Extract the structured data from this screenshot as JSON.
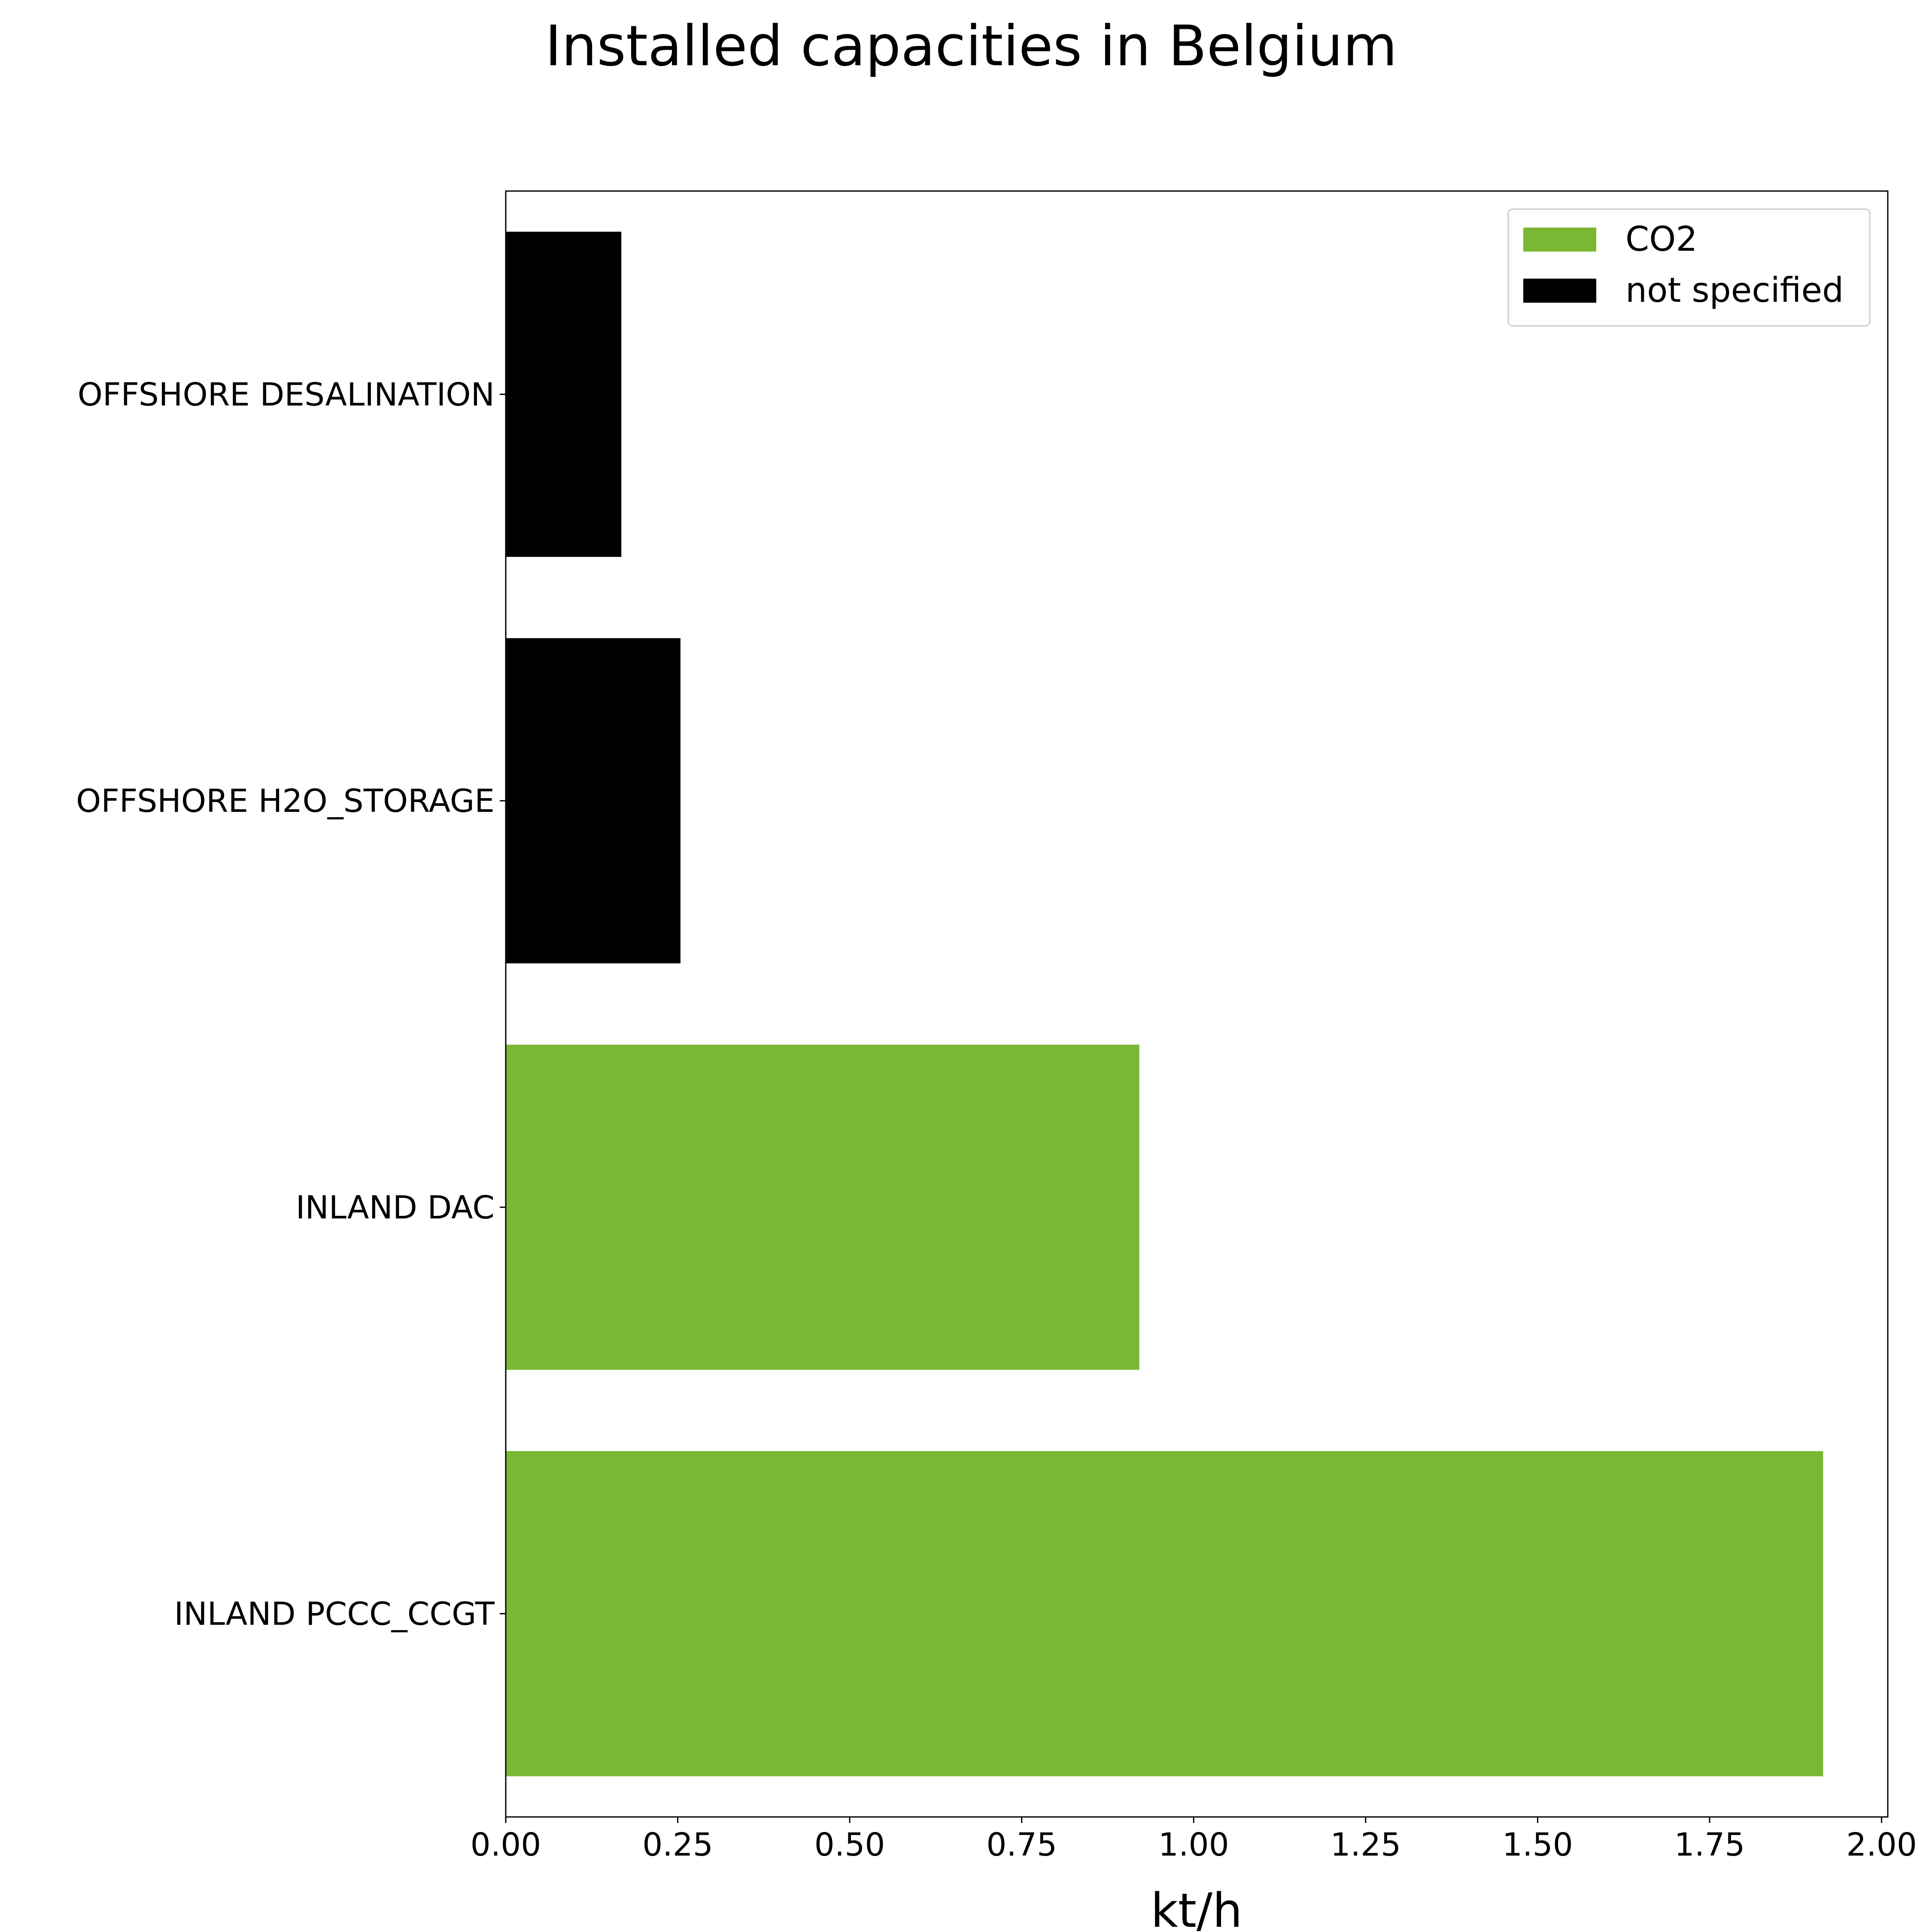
{
  "chart_data": {
    "type": "bar",
    "orientation": "horizontal",
    "title": "Installed capacities in Belgium",
    "xlabel": "kt/h",
    "ylabel": "",
    "xlim": [
      0,
      2.009
    ],
    "x_ticks": [
      0.0,
      0.25,
      0.5,
      0.75,
      1.0,
      1.25,
      1.5,
      1.75,
      2.0
    ],
    "x_tick_labels": [
      "0.00",
      "0.25",
      "0.50",
      "0.75",
      "1.00",
      "1.25",
      "1.50",
      "1.75",
      "2.00"
    ],
    "categories": [
      "OFFSHORE DESALINATION",
      "OFFSHORE H2O_STORAGE",
      "INLAND DAC",
      "INLAND PCCC_CCGT"
    ],
    "values": [
      0.168,
      0.254,
      0.921,
      1.915
    ],
    "bar_series": [
      "not specified",
      "not specified",
      "CO2",
      "CO2"
    ],
    "series": [
      {
        "name": "CO2",
        "color": "#7ab833"
      },
      {
        "name": "not specified",
        "color": "#000000"
      }
    ],
    "legend_position": "top-right",
    "grid": false
  }
}
